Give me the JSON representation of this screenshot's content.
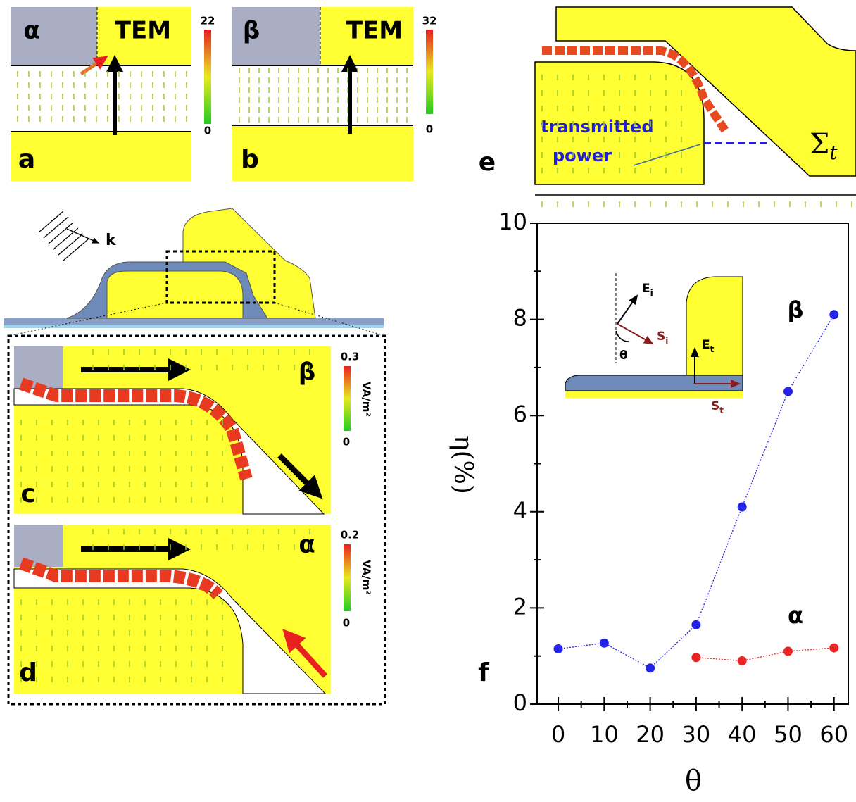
{
  "panels": {
    "a": {
      "label": "a",
      "mode": "α",
      "source": "TEM",
      "cbar_max": "22",
      "cbar_min": "0"
    },
    "b": {
      "label": "b",
      "mode": "β",
      "source": "TEM",
      "cbar_max": "32",
      "cbar_min": "0"
    },
    "c": {
      "label": "c",
      "mode": "β",
      "cbar_max": "0.3",
      "cbar_unit": "VA/m²",
      "cbar_min": "0"
    },
    "d": {
      "label": "d",
      "mode": "α",
      "cbar_max": "0.2",
      "cbar_unit": "VA/m²",
      "cbar_min": "0"
    },
    "e": {
      "label": "e",
      "annotation": [
        "transmitted",
        "power"
      ],
      "surface": "Σ",
      "surface_sub": "t"
    },
    "schematic": {
      "wavevector": "k"
    }
  },
  "chart_data": {
    "type": "line",
    "label": "f",
    "xlabel": "θ",
    "ylabel": "η(%)",
    "x": [
      0,
      10,
      20,
      30,
      40,
      50,
      60
    ],
    "series": [
      {
        "name": "β",
        "color": "#2424e8",
        "values": [
          1.15,
          1.27,
          0.75,
          1.65,
          4.1,
          6.5,
          8.1
        ]
      },
      {
        "name": "α",
        "color": "#e82424",
        "values": [
          null,
          null,
          null,
          0.97,
          0.9,
          1.1,
          1.17
        ]
      }
    ],
    "xlim": [
      -4.6,
      63.1
    ],
    "ylim": [
      0,
      10
    ],
    "xticks": [
      0,
      10,
      20,
      30,
      40,
      50,
      60
    ],
    "yticks": [
      0,
      2,
      4,
      6,
      8,
      10
    ],
    "minor_xticks": [
      5,
      15,
      25,
      35,
      45,
      55
    ],
    "minor_yticks": [
      1,
      3,
      5,
      7,
      9
    ],
    "inset": {
      "incident_field": [
        "E",
        "i"
      ],
      "incident_power": [
        "S",
        "i"
      ],
      "angle": "θ",
      "transmitted_field": [
        "E",
        "t"
      ],
      "transmitted_power": [
        "S",
        "t"
      ]
    }
  }
}
